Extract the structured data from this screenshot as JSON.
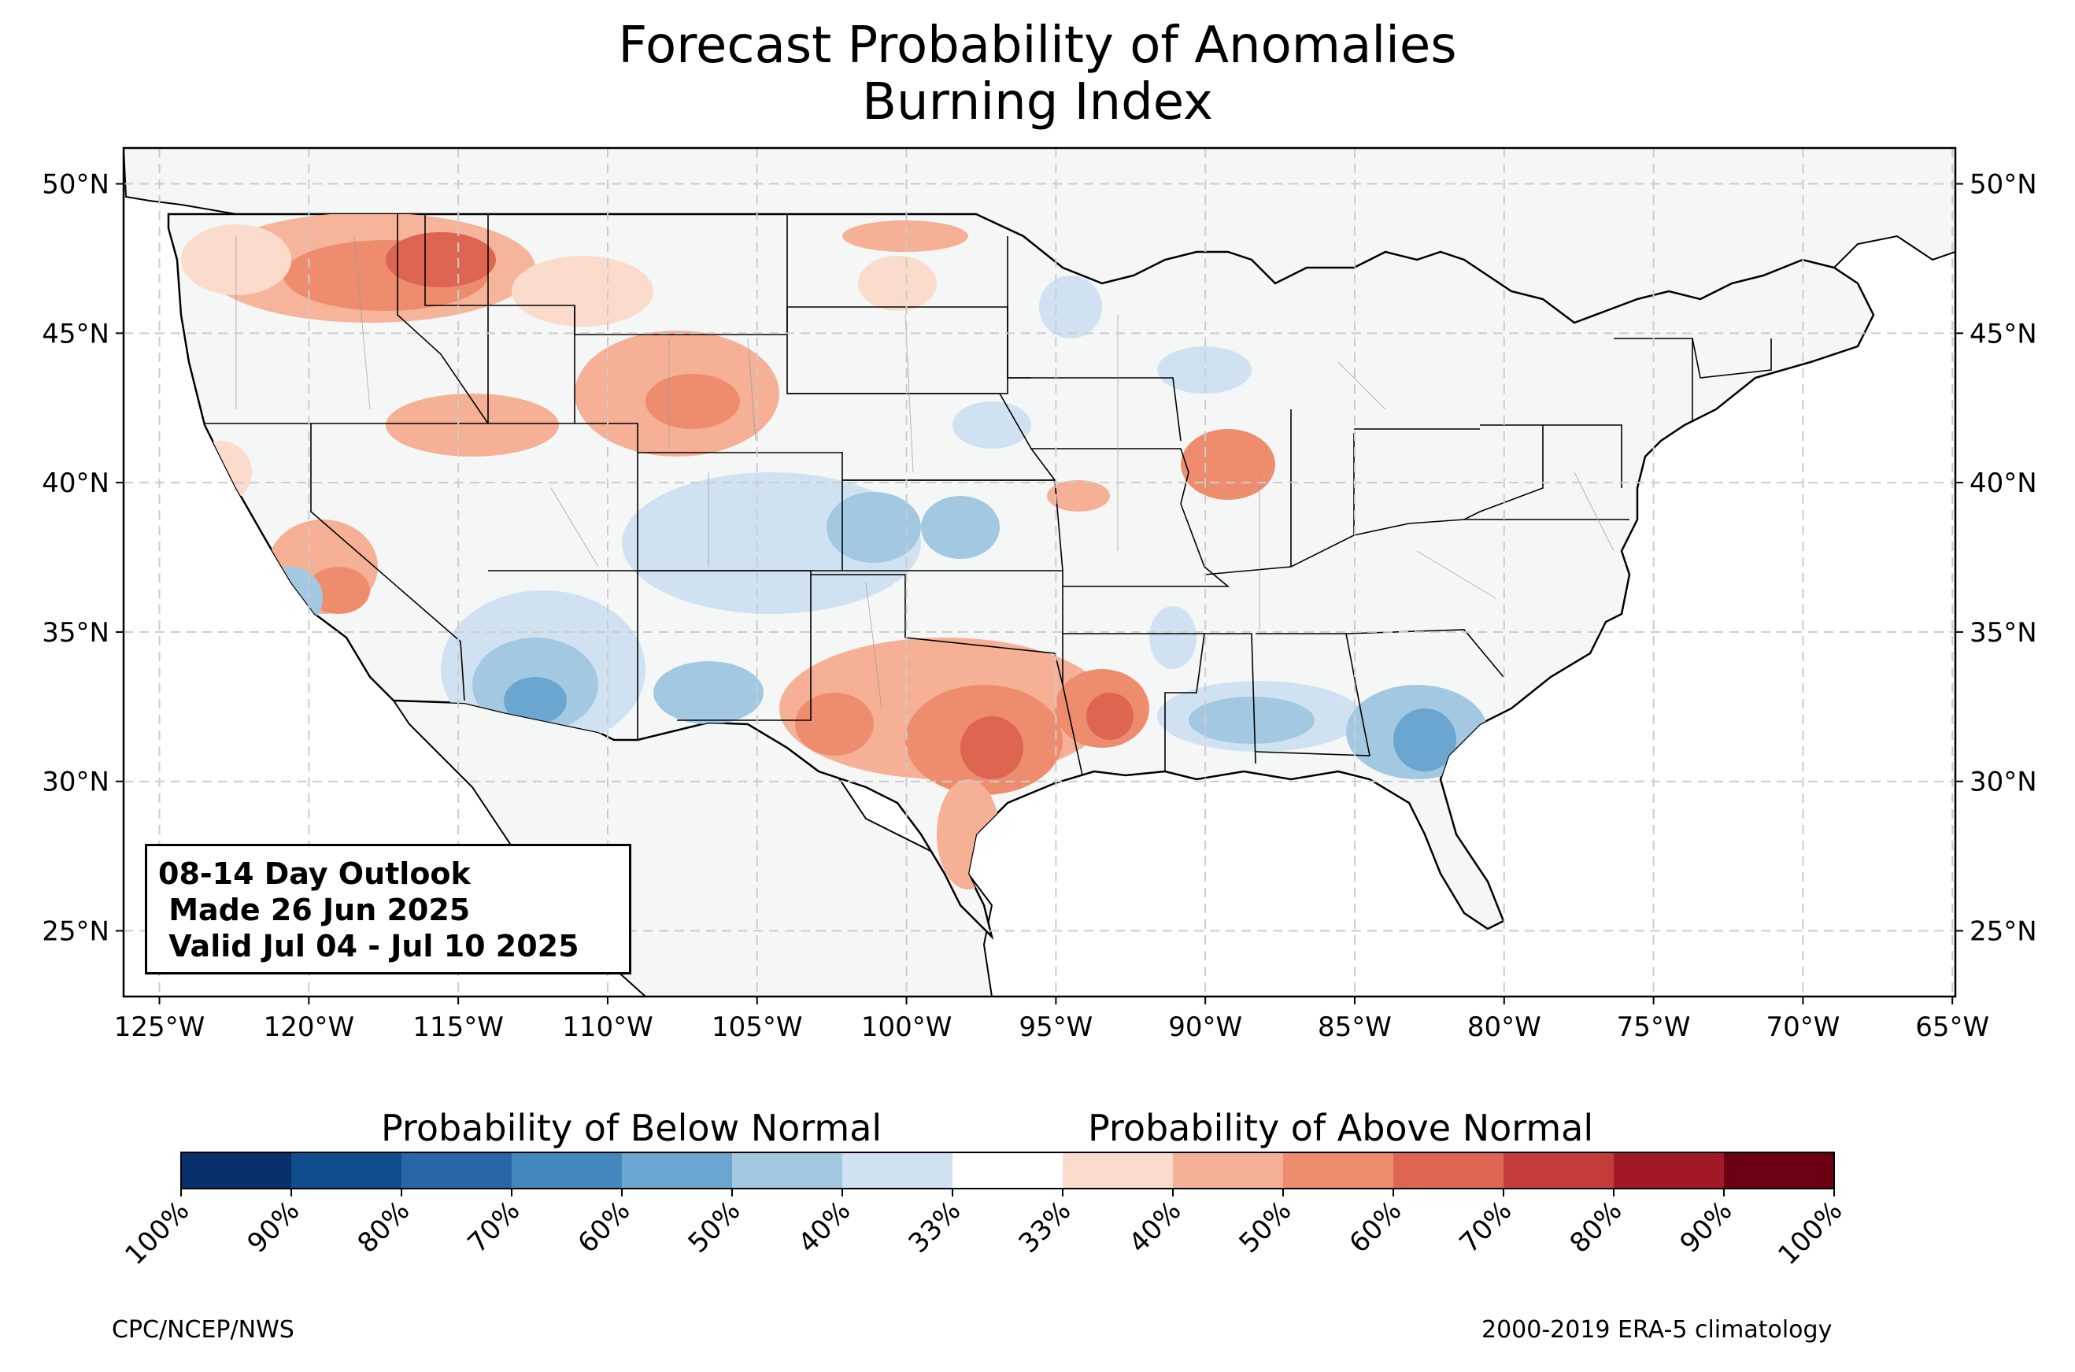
{
  "title": {
    "line1": "Forecast Probability of Anomalies",
    "line2": "Burning Index"
  },
  "info_box": {
    "line1": "08-14 Day Outlook",
    "line2": " Made 26 Jun 2025",
    "line3": " Valid Jul 04 - Jul 10 2025"
  },
  "axes": {
    "lat_labels": [
      "50°N",
      "45°N",
      "40°N",
      "35°N",
      "30°N",
      "25°N"
    ],
    "lon_labels": [
      "125°W",
      "120°W",
      "115°W",
      "110°W",
      "105°W",
      "100°W",
      "95°W",
      "90°W",
      "85°W",
      "80°W",
      "75°W",
      "70°W",
      "65°W"
    ],
    "lat_range": [
      22.8,
      51.2
    ],
    "lon_range": [
      -126.2,
      -64.9
    ],
    "gridlines": true
  },
  "colorbar": {
    "below_label": "Probability of Below Normal",
    "above_label": "Probability of Above Normal",
    "tick_labels": [
      "100%",
      "90%",
      "80%",
      "70%",
      "60%",
      "50%",
      "40%",
      "33%",
      "33%",
      "40%",
      "50%",
      "60%",
      "70%",
      "80%",
      "90%",
      "100%"
    ],
    "colors": [
      "#08306b",
      "#0f4d8d",
      "#2767a8",
      "#4288be",
      "#6ba6d0",
      "#a2c8e2",
      "#d0e2f1",
      "#ffffff",
      "#fbdccc",
      "#f5b095",
      "#ee8d6e",
      "#dd6552",
      "#c33c3a",
      "#a11827",
      "#6a0012"
    ]
  },
  "map_colors": {
    "land": "#f5f7f7",
    "border": "#000000",
    "county_lines": "#999999"
  },
  "footer": {
    "left": "CPC/NCEP/NWS",
    "right": "2000-2019 ERA-5 climatology"
  }
}
